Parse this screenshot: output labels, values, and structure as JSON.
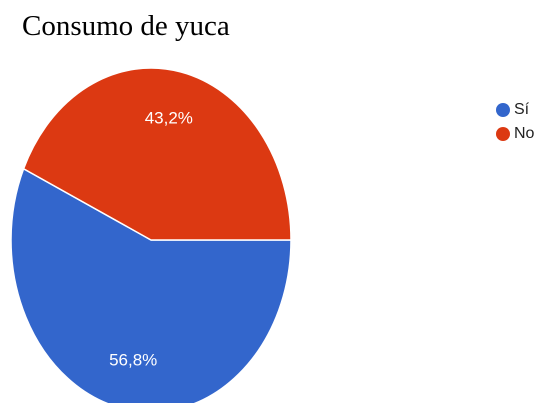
{
  "chart_data": {
    "type": "pie",
    "title": "Consumo de yuca",
    "slices": [
      {
        "name": "Sí",
        "value": 56.8,
        "label": "56,8%",
        "color": "#3366cc"
      },
      {
        "name": "No",
        "value": 43.2,
        "label": "43,2%",
        "color": "#dc3912"
      }
    ],
    "legend_position": "right"
  }
}
